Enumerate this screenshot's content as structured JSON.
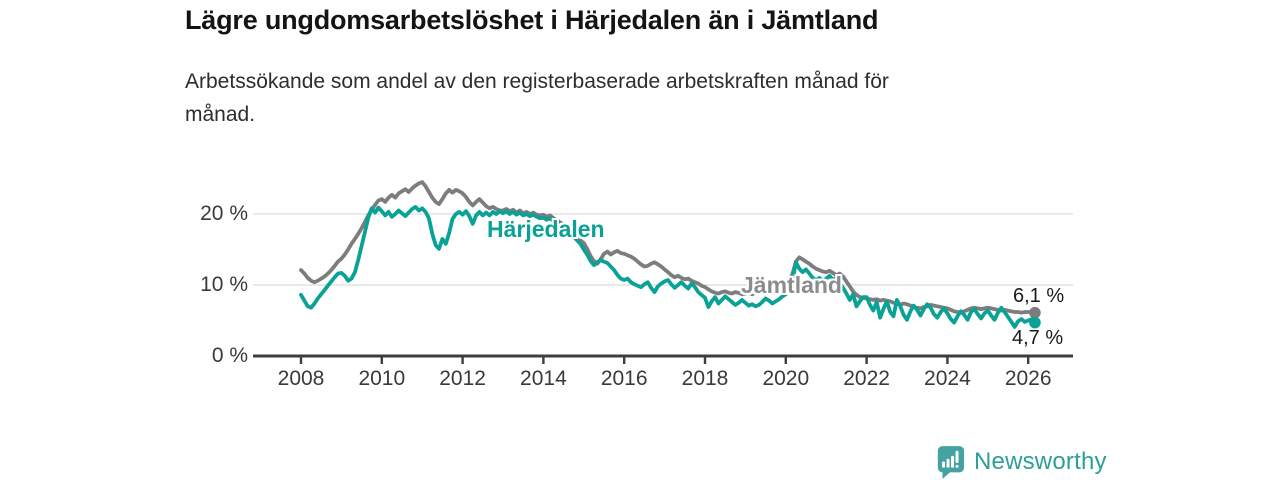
{
  "title": "Lägre ungdomsarbetslöshet i Härjedalen än i Jämtland",
  "subtitle": "Arbetssökande som andel av den registerbaserade arbetskraften månad för månad.",
  "subtitle_lines": [
    "Arbetssökande som andel av den registerbaserade arbetskraften månad för",
    "månad."
  ],
  "branding": {
    "name": "Newsworthy",
    "icon": "bar-chart-speech-bubble-icon",
    "icon_color": "#44a3a0",
    "text_color": "#2d9e99"
  },
  "chart_data": {
    "type": "line",
    "title": "Lägre ungdomsarbetslöshet i Härjedalen än i Jämtland",
    "xlabel": "",
    "ylabel": "",
    "x_start_year": 2008,
    "points_per_year": 12,
    "x_end": "2026-03",
    "x_ticks": [
      2008,
      2010,
      2012,
      2014,
      2016,
      2018,
      2020,
      2022,
      2024,
      2026
    ],
    "y_ticks": [
      {
        "value": 0,
        "label": "0 %"
      },
      {
        "value": 10,
        "label": "10 %"
      },
      {
        "value": 20,
        "label": "20 %"
      }
    ],
    "ylim": [
      0,
      26
    ],
    "grid": "horizontal",
    "legend_position": "inline-labels",
    "axis_color": "#3d3d3d",
    "grid_color": "#dcdcdc",
    "series": [
      {
        "name": "Jämtland",
        "color": "#7d7d7d",
        "label_color": "#8c8c8c",
        "end_label": "6,1 %",
        "end_value": 6.1,
        "values": [
          12.1,
          11.6,
          11.0,
          10.6,
          10.4,
          10.6,
          10.9,
          11.2,
          11.6,
          12.1,
          12.7,
          13.3,
          13.7,
          14.3,
          15.0,
          15.8,
          16.5,
          17.2,
          18.0,
          18.9,
          19.8,
          20.6,
          21.3,
          21.9,
          22.1,
          21.7,
          22.3,
          22.7,
          22.3,
          22.9,
          23.2,
          23.5,
          23.1,
          23.6,
          24.0,
          24.3,
          24.5,
          23.9,
          23.1,
          22.3,
          21.7,
          21.4,
          22.1,
          22.9,
          23.4,
          23.0,
          23.4,
          23.2,
          22.9,
          22.4,
          21.7,
          21.2,
          21.7,
          22.1,
          21.6,
          21.1,
          20.8,
          21.0,
          20.7,
          20.5,
          20.5,
          20.7,
          20.4,
          20.6,
          20.2,
          20.5,
          20.1,
          20.3,
          20.0,
          20.2,
          19.9,
          19.8,
          19.9,
          19.6,
          19.8,
          19.4,
          19.1,
          18.8,
          18.5,
          18.1,
          17.7,
          17.3,
          16.8,
          16.3,
          15.9,
          15.1,
          14.1,
          13.4,
          13.0,
          13.6,
          14.4,
          14.7,
          14.3,
          14.6,
          14.8,
          14.5,
          14.4,
          14.2,
          14.0,
          13.7,
          13.3,
          12.9,
          12.6,
          12.7,
          13.0,
          13.2,
          12.9,
          12.6,
          12.2,
          11.8,
          11.4,
          11.1,
          11.3,
          11.0,
          10.8,
          10.9,
          10.6,
          10.4,
          10.2,
          9.9,
          9.7,
          9.4,
          9.1,
          8.9,
          8.8,
          9.0,
          9.1,
          8.9,
          8.8,
          9.0,
          8.9,
          8.7,
          8.8,
          8.9,
          8.7,
          8.9,
          9.0,
          8.9,
          9.1,
          9.0,
          9.2,
          9.1,
          9.3,
          9.5,
          9.8,
          10.3,
          11.6,
          13.3,
          13.9,
          13.6,
          13.3,
          13.0,
          12.6,
          12.3,
          12.1,
          11.9,
          11.8,
          12.0,
          11.7,
          11.4,
          11.6,
          11.2,
          10.5,
          9.8,
          9.1,
          8.6,
          8.3,
          8.2,
          8.1,
          8.0,
          7.9,
          8.0,
          7.8,
          7.9,
          7.8,
          7.7,
          7.5,
          7.4,
          7.2,
          7.4,
          7.3,
          7.1,
          6.9,
          6.8,
          6.7,
          6.9,
          7.0,
          7.2,
          7.1,
          7.0,
          6.9,
          6.8,
          6.7,
          6.5,
          6.3,
          6.2,
          6.1,
          6.3,
          6.5,
          6.7,
          6.8,
          6.7,
          6.6,
          6.7,
          6.8,
          6.7,
          6.6,
          6.5,
          6.4,
          6.5,
          6.4,
          6.3,
          6.2,
          6.2,
          6.1,
          6.2,
          6.2,
          6.2,
          6.1
        ]
      },
      {
        "name": "Härjedalen",
        "color": "#0aa296",
        "label_color": "#0aa296",
        "end_label": "4,7 %",
        "end_value": 4.7,
        "values": [
          8.6,
          7.8,
          7.0,
          6.8,
          7.4,
          8.1,
          8.7,
          9.3,
          9.9,
          10.5,
          11.1,
          11.6,
          11.7,
          11.3,
          10.6,
          10.9,
          11.8,
          13.5,
          15.5,
          17.5,
          19.5,
          20.8,
          20.2,
          20.9,
          20.4,
          19.8,
          20.3,
          19.6,
          20.0,
          20.5,
          20.1,
          19.7,
          20.2,
          20.7,
          21.0,
          20.5,
          20.8,
          20.3,
          19.4,
          17.2,
          15.6,
          15.1,
          16.5,
          15.8,
          17.3,
          19.3,
          20.0,
          20.3,
          19.9,
          20.4,
          19.7,
          18.6,
          19.8,
          20.3,
          19.8,
          20.2,
          19.8,
          20.3,
          20.0,
          20.4,
          20.1,
          20.4,
          20.0,
          20.3,
          19.9,
          20.2,
          19.8,
          20.0,
          19.7,
          19.9,
          19.6,
          19.4,
          19.5,
          19.2,
          19.4,
          19.0,
          18.7,
          18.4,
          18.0,
          17.6,
          17.2,
          16.8,
          16.3,
          15.8,
          15.0,
          14.3,
          13.4,
          12.8,
          13.2,
          13.5,
          13.3,
          13.1,
          12.6,
          12.1,
          11.4,
          10.9,
          10.7,
          10.9,
          10.4,
          10.1,
          9.9,
          9.7,
          10.1,
          10.4,
          9.6,
          9.0,
          9.8,
          10.2,
          10.5,
          10.7,
          10.1,
          9.6,
          10.0,
          10.4,
          9.9,
          9.5,
          10.2,
          9.7,
          9.0,
          8.6,
          8.2,
          6.9,
          7.7,
          8.3,
          7.4,
          7.9,
          8.4,
          8.0,
          7.6,
          7.2,
          7.5,
          7.9,
          7.5,
          7.1,
          7.3,
          7.0,
          7.2,
          7.6,
          8.1,
          7.8,
          7.4,
          7.7,
          8.0,
          8.4,
          8.7,
          9.1,
          10.6,
          13.2,
          12.3,
          11.8,
          12.2,
          11.6,
          11.0,
          10.7,
          11.0,
          10.5,
          10.9,
          11.3,
          10.7,
          11.0,
          10.3,
          9.6,
          8.8,
          7.9,
          8.7,
          7.0,
          7.7,
          8.3,
          8.3,
          7.2,
          6.4,
          7.6,
          5.4,
          6.6,
          7.7,
          6.2,
          5.6,
          7.9,
          7.0,
          5.8,
          5.1,
          6.3,
          7.1,
          6.5,
          5.7,
          6.6,
          7.3,
          6.8,
          5.9,
          5.4,
          6.2,
          6.7,
          6.0,
          5.2,
          4.7,
          5.6,
          6.3,
          5.8,
          5.1,
          6.2,
          6.6,
          5.9,
          5.3,
          6.0,
          6.4,
          5.7,
          5.1,
          6.1,
          6.8,
          6.2,
          5.5,
          4.8,
          4.1,
          4.9,
          5.2,
          4.8,
          5.0,
          5.2,
          4.7
        ]
      }
    ]
  }
}
